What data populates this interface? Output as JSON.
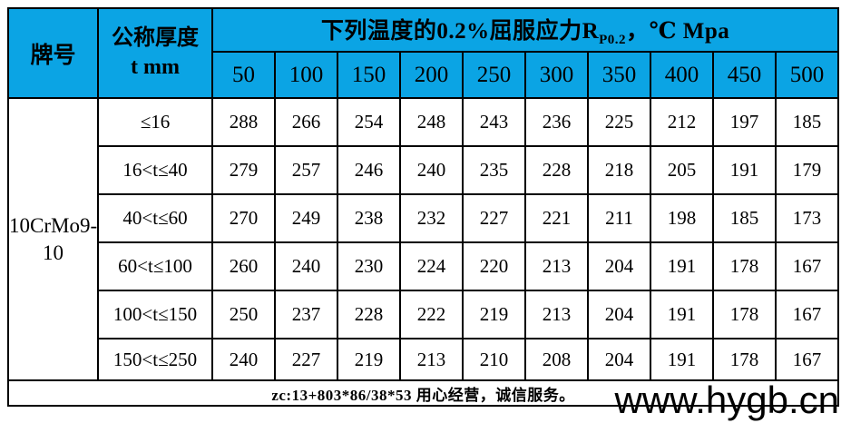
{
  "colors": {
    "header_bg": "#0ba4e4",
    "border": "#000000",
    "page_bg": "#ffffff",
    "text": "#000000"
  },
  "header": {
    "grade_col_label": "牌号",
    "thickness_col_label_line1": "公称厚度",
    "thickness_col_label_line2": "t mm",
    "title_prefix": "下列温度的0.2%屈服应力R",
    "title_sub": "P0.2",
    "title_suffix": "，℃ Mpa"
  },
  "chart_data": {
    "type": "table",
    "title": "下列温度的0.2%屈服应力RP0.2，℃ Mpa",
    "grade": "10CrMo9-10",
    "grade_display_lines": [
      "10CrMo9-",
      "10"
    ],
    "row_header": "公称厚度 t mm",
    "temperature_columns_c": [
      "50",
      "100",
      "150",
      "200",
      "250",
      "300",
      "350",
      "400",
      "450",
      "500"
    ],
    "rows": [
      {
        "thickness": "≤16",
        "values": [
          "288",
          "266",
          "254",
          "248",
          "243",
          "236",
          "225",
          "212",
          "197",
          "185"
        ]
      },
      {
        "thickness": "16<t≤40",
        "values": [
          "279",
          "257",
          "246",
          "240",
          "235",
          "228",
          "218",
          "205",
          "191",
          "179"
        ]
      },
      {
        "thickness": "40<t≤60",
        "values": [
          "270",
          "249",
          "238",
          "232",
          "227",
          "221",
          "211",
          "198",
          "185",
          "173"
        ]
      },
      {
        "thickness": "60<t≤100",
        "values": [
          "260",
          "240",
          "230",
          "224",
          "220",
          "213",
          "204",
          "191",
          "178",
          "167"
        ]
      },
      {
        "thickness": "100<t≤150",
        "values": [
          "250",
          "237",
          "228",
          "222",
          "219",
          "213",
          "204",
          "191",
          "178",
          "167"
        ]
      },
      {
        "thickness": "150<t≤250",
        "values": [
          "240",
          "227",
          "219",
          "213",
          "210",
          "208",
          "204",
          "191",
          "178",
          "167"
        ]
      }
    ]
  },
  "footer": {
    "note": "zc:13+803*86/38*53 用心经营，诚信服务。"
  },
  "watermark": {
    "text": "www.hygb.cn"
  }
}
